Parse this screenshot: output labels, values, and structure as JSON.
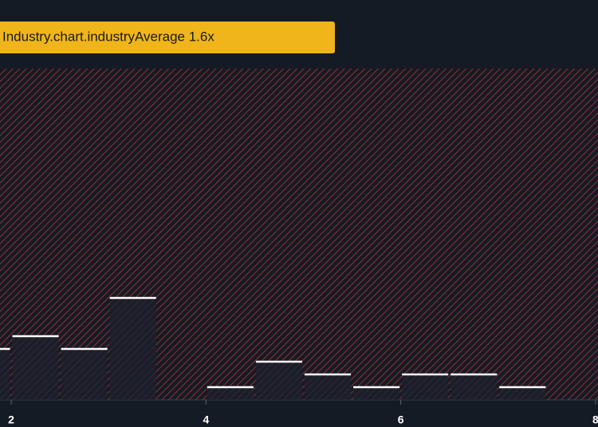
{
  "chart_data": {
    "type": "histogram",
    "annotation": "Industry.chart.industryAverage 1.6x",
    "bins": [
      1.5,
      2,
      2.5,
      3,
      3.5,
      4,
      4.5,
      5,
      5.5,
      6,
      6.5,
      7,
      7.5,
      8
    ],
    "values": [
      4,
      5,
      4,
      8,
      0,
      1,
      3,
      2,
      1,
      2,
      2,
      1,
      0
    ],
    "color": "#1b222c",
    "xlim": [
      1.885,
      8.025
    ],
    "xticks": [
      2,
      4,
      6,
      8
    ],
    "ylim": [
      0,
      26
    ]
  }
}
